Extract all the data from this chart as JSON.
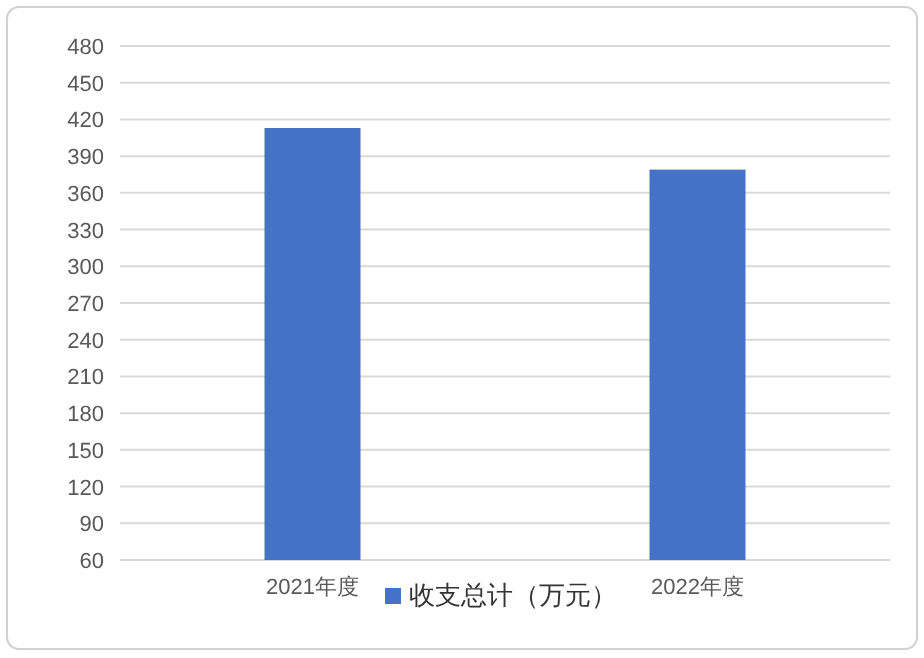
{
  "chart_data": {
    "type": "bar",
    "categories": [
      "2021年度",
      "2022年度"
    ],
    "series": [
      {
        "name": "收支总计（万元）",
        "color": "#4472c4",
        "values": [
          413,
          379
        ]
      }
    ],
    "ylim": [
      60,
      480
    ],
    "yticks": [
      60,
      90,
      120,
      150,
      180,
      210,
      240,
      270,
      300,
      330,
      360,
      390,
      420,
      450,
      480
    ],
    "grid": "y",
    "legend": "bottom"
  }
}
